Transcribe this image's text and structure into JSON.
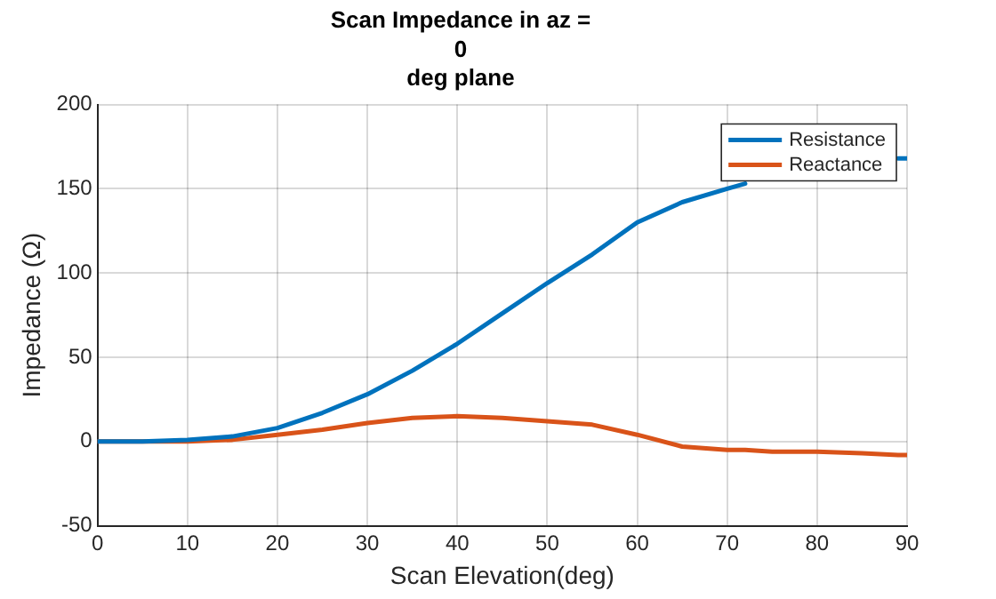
{
  "chart_data": {
    "type": "line",
    "title": "Scan Impedance in az =\n0\ndeg plane",
    "xlabel": "Scan Elevation(deg)",
    "ylabel": "Impedance (Ω)",
    "x": [
      0,
      5,
      10,
      15,
      20,
      25,
      30,
      35,
      40,
      45,
      50,
      55,
      60,
      65,
      70,
      72,
      75,
      80,
      85,
      89,
      90
    ],
    "xlim": [
      0,
      90
    ],
    "xticks": [
      0,
      10,
      20,
      30,
      40,
      50,
      60,
      70,
      80,
      90
    ],
    "ylim": [
      -50,
      200
    ],
    "yticks": [
      -50,
      0,
      50,
      100,
      150,
      200
    ],
    "grid": true,
    "legend": "top right",
    "line_style": "solid",
    "marker": "none",
    "series": [
      {
        "name": "Resistance",
        "color": "#0072bd",
        "values": [
          0,
          0,
          1,
          3,
          8,
          17,
          28,
          42,
          58,
          76,
          94,
          111,
          130,
          142,
          150,
          153,
          null,
          null,
          null,
          168,
          168
        ]
      },
      {
        "name": "Reactance",
        "color": "#d95319",
        "values": [
          0,
          0,
          0,
          1,
          4,
          7,
          11,
          14,
          15,
          14,
          12,
          10,
          4,
          -3,
          -5,
          -5,
          -6,
          -6,
          -7,
          -8,
          -8
        ]
      }
    ]
  }
}
